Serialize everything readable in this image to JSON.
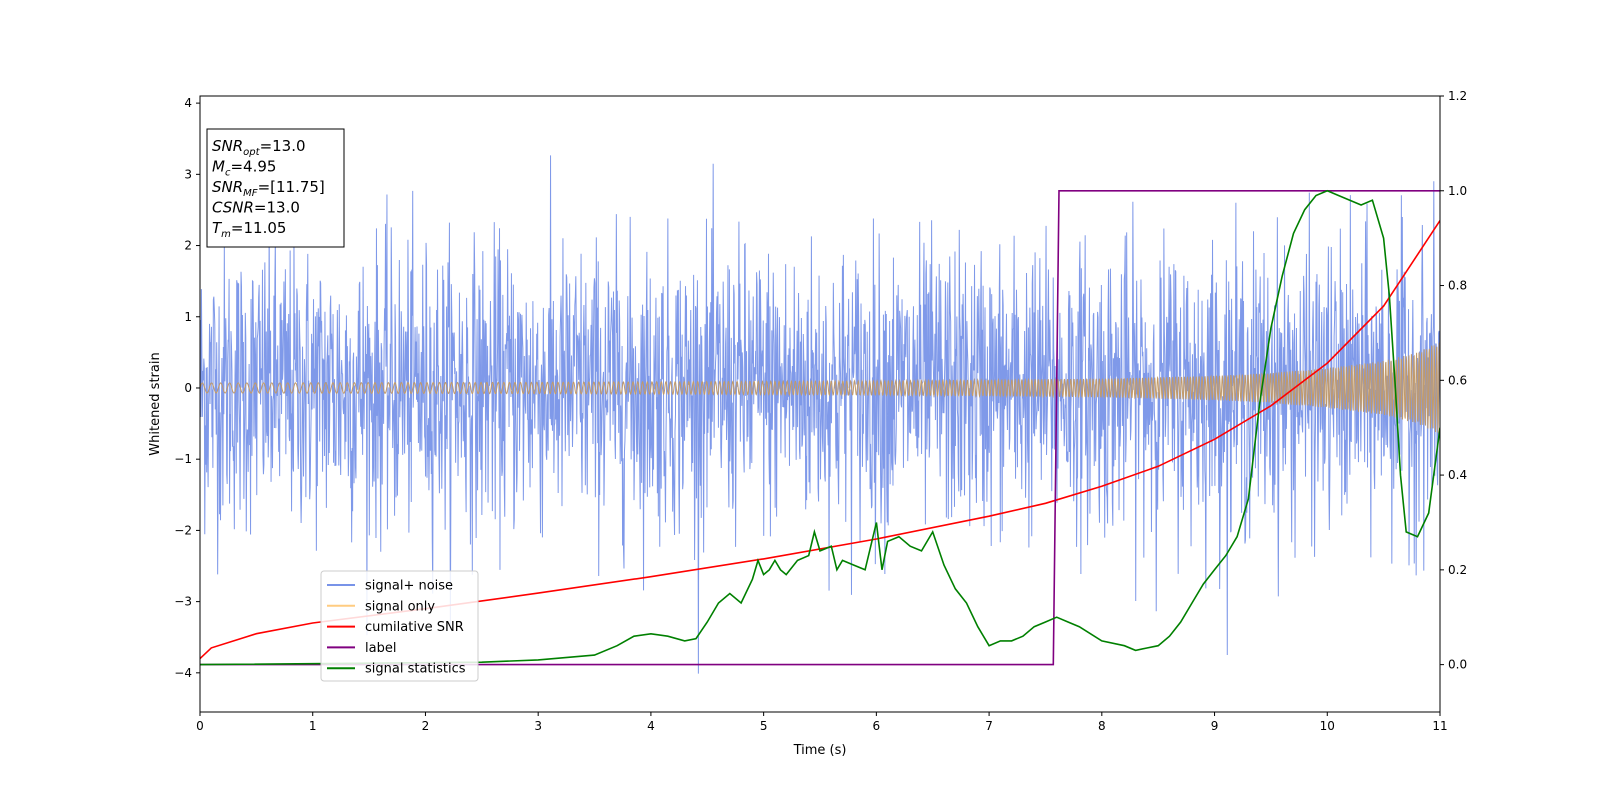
{
  "chart_data": {
    "type": "line",
    "xlabel": "Time (s)",
    "ylabel": "Whitened strain",
    "xlim": [
      0,
      11
    ],
    "ylim": [
      -4.55,
      4.1
    ],
    "y2lim": [
      -0.1,
      1.2
    ],
    "x_ticks": [
      "0",
      "1",
      "2",
      "3",
      "4",
      "5",
      "6",
      "7",
      "8",
      "9",
      "10",
      "11"
    ],
    "y_ticks": [
      "−4",
      "−3",
      "−2",
      "−1",
      "0",
      "1",
      "2",
      "3",
      "4"
    ],
    "y2_ticks": [
      "0.0",
      "0.2",
      "0.4",
      "0.6",
      "0.8",
      "1.0",
      "1.2"
    ],
    "grid": false,
    "legend_position": "lower-left",
    "legend": {
      "items": [
        {
          "label": "signal+ noise",
          "color": "#7893e8"
        },
        {
          "label": "signal only",
          "color": "#ffcc80"
        },
        {
          "label": "cumilative SNR",
          "color": "#ff0000"
        },
        {
          "label": "label",
          "color": "#800080"
        },
        {
          "label": "signal statistics",
          "color": "#008000"
        }
      ]
    },
    "info_box": {
      "lines": [
        {
          "base": "SNR",
          "sub": "opt",
          "value": "=13.0"
        },
        {
          "base": "M",
          "sub": "c",
          "value": "=4.95"
        },
        {
          "base": "SNR",
          "sub": "MF",
          "value": "=[11.75]"
        },
        {
          "base": "CSNR",
          "sub": "",
          "value": "=13.0"
        },
        {
          "base": "T",
          "sub": "m",
          "value": "=11.05"
        }
      ]
    },
    "series": [
      {
        "name": "signal+ noise",
        "axis": "left",
        "color": "#7893e8",
        "noise_std_estimate": 0.95,
        "envelope_points": {
          "x": [
            0,
            11
          ],
          "y_low": [
            -1.4,
            -2.4
          ],
          "y_high": [
            1.4,
            2.4
          ]
        }
      },
      {
        "name": "signal only",
        "axis": "left",
        "color": "#c19a6b",
        "amplitude_envelope": {
          "x": [
            0,
            3,
            6,
            8,
            9,
            9.5,
            10,
            10.5,
            10.8,
            11
          ],
          "y": [
            0.07,
            0.08,
            0.1,
            0.13,
            0.17,
            0.21,
            0.28,
            0.38,
            0.5,
            0.65
          ]
        }
      },
      {
        "name": "cumilative SNR",
        "axis": "left",
        "color": "#ff0000",
        "x": [
          0,
          0.1,
          0.5,
          1,
          2,
          3,
          4,
          5,
          6,
          7,
          7.5,
          8,
          8.5,
          9,
          9.5,
          10,
          10.5,
          11
        ],
        "y": [
          -3.8,
          -3.65,
          -3.45,
          -3.3,
          -3.1,
          -2.88,
          -2.65,
          -2.4,
          -2.12,
          -1.8,
          -1.62,
          -1.38,
          -1.1,
          -0.72,
          -0.25,
          0.35,
          1.15,
          2.35
        ]
      },
      {
        "name": "label",
        "axis": "right",
        "color": "#800080",
        "x": [
          0,
          7.57,
          7.62,
          11
        ],
        "y": [
          0,
          0,
          1,
          1
        ]
      },
      {
        "name": "signal statistics",
        "axis": "right",
        "color": "#008000",
        "x": [
          0,
          2.5,
          3.0,
          3.5,
          3.7,
          3.85,
          4.0,
          4.15,
          4.3,
          4.4,
          4.5,
          4.6,
          4.7,
          4.8,
          4.9,
          4.95,
          5.0,
          5.05,
          5.1,
          5.15,
          5.2,
          5.3,
          5.4,
          5.45,
          5.5,
          5.6,
          5.65,
          5.7,
          5.8,
          5.9,
          6.0,
          6.05,
          6.1,
          6.2,
          6.3,
          6.4,
          6.5,
          6.6,
          6.7,
          6.8,
          6.9,
          7.0,
          7.1,
          7.2,
          7.3,
          7.4,
          7.5,
          7.6,
          7.7,
          7.8,
          8.0,
          8.2,
          8.3,
          8.4,
          8.5,
          8.6,
          8.7,
          8.8,
          8.9,
          9.0,
          9.1,
          9.2,
          9.3,
          9.4,
          9.5,
          9.6,
          9.7,
          9.8,
          9.9,
          10.0,
          10.1,
          10.2,
          10.3,
          10.4,
          10.5,
          10.55,
          10.6,
          10.65,
          10.7,
          10.8,
          10.9,
          11.0
        ],
        "y": [
          0.0,
          0.005,
          0.01,
          0.02,
          0.04,
          0.06,
          0.065,
          0.06,
          0.05,
          0.055,
          0.09,
          0.13,
          0.15,
          0.13,
          0.18,
          0.22,
          0.19,
          0.2,
          0.22,
          0.2,
          0.19,
          0.22,
          0.23,
          0.28,
          0.24,
          0.25,
          0.2,
          0.22,
          0.21,
          0.2,
          0.3,
          0.2,
          0.26,
          0.27,
          0.25,
          0.24,
          0.28,
          0.21,
          0.16,
          0.13,
          0.08,
          0.04,
          0.05,
          0.05,
          0.06,
          0.08,
          0.09,
          0.1,
          0.09,
          0.08,
          0.05,
          0.04,
          0.03,
          0.035,
          0.04,
          0.06,
          0.09,
          0.13,
          0.17,
          0.2,
          0.23,
          0.27,
          0.35,
          0.55,
          0.71,
          0.82,
          0.91,
          0.96,
          0.99,
          1.0,
          0.99,
          0.98,
          0.97,
          0.98,
          0.9,
          0.78,
          0.6,
          0.4,
          0.28,
          0.27,
          0.32,
          0.5
        ]
      }
    ]
  }
}
